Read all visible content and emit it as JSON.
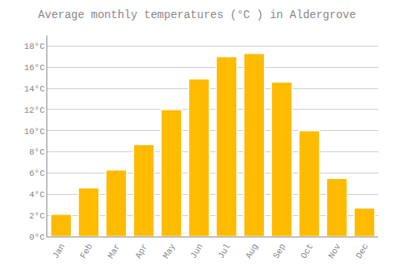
{
  "chart_data": {
    "type": "bar",
    "title": "Average monthly temperatures (°C ) in Aldergrove",
    "categories": [
      "Jan",
      "Feb",
      "Mar",
      "Apr",
      "May",
      "Jun",
      "Jul",
      "Aug",
      "Sep",
      "Oct",
      "Nov",
      "Dec"
    ],
    "values": [
      2.1,
      4.6,
      6.3,
      8.7,
      12.0,
      14.9,
      17.0,
      17.3,
      14.6,
      10.0,
      5.5,
      2.7
    ],
    "color": "#FFBB00",
    "ylim": [
      0,
      19
    ],
    "yticks": [
      {
        "value": 0,
        "label": "0°C"
      },
      {
        "value": 2,
        "label": "2°C"
      },
      {
        "value": 4,
        "label": "4°C"
      },
      {
        "value": 6,
        "label": "6°C"
      },
      {
        "value": 8,
        "label": "8°C"
      },
      {
        "value": 10,
        "label": "10°C"
      },
      {
        "value": 12,
        "label": "12°C"
      },
      {
        "value": 14,
        "label": "14°C"
      },
      {
        "value": 16,
        "label": "16°C"
      },
      {
        "value": 18,
        "label": "18°C"
      }
    ],
    "grid": true
  }
}
